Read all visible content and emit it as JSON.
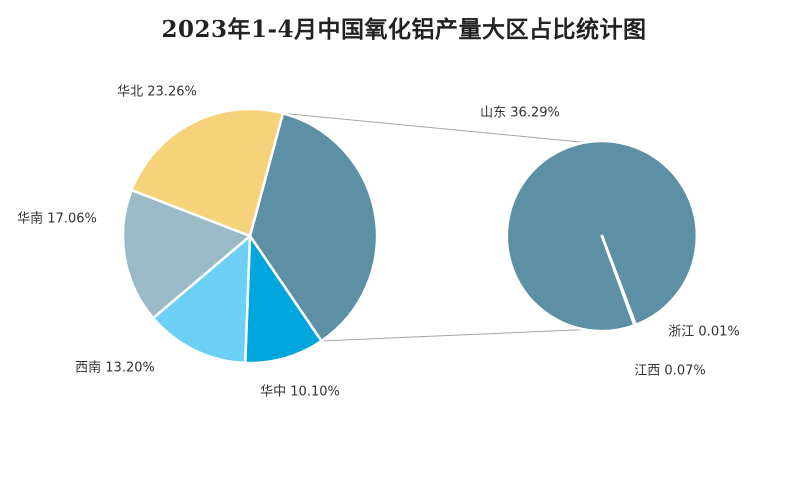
{
  "chart_data": {
    "type": "pie",
    "title": "2023年1-4月中国氧化铝产量大区占比统计图",
    "subtype": "pie-of-pie",
    "main_pie": {
      "slices": [
        {
          "label": "山东",
          "value": 36.29,
          "display": "36.29%",
          "color": "#5d8fa5"
        },
        {
          "label": "华中",
          "value": 10.1,
          "display": "10.10%",
          "color": "#00a6de"
        },
        {
          "label": "西南",
          "value": 13.2,
          "display": "13.20%",
          "color": "#6ccff5"
        },
        {
          "label": "华南",
          "value": 17.06,
          "display": "17.06%",
          "color": "#9bbac8"
        },
        {
          "label": "华北",
          "value": 23.26,
          "display": "23.26%",
          "color": "#f6d37a"
        }
      ]
    },
    "secondary_pie": {
      "parent": "山东",
      "slices": [
        {
          "label": "山东",
          "value": 36.29,
          "display": "36.29%",
          "color": "#5d8fa5"
        },
        {
          "label": "浙江",
          "value": 0.01,
          "display": "0.01%",
          "color": "#5d8fa5"
        },
        {
          "label": "江西",
          "value": 0.07,
          "display": "0.07%",
          "color": "#5d8fa5"
        }
      ]
    },
    "label_format": "{label} {display}",
    "legend": "none",
    "grid": false
  }
}
